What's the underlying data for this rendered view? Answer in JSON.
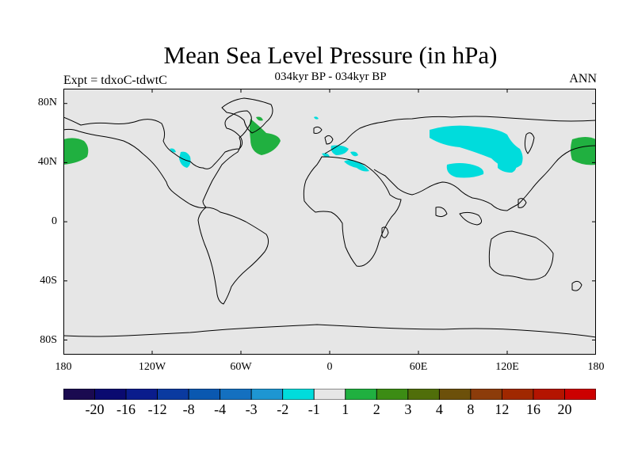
{
  "title": "Mean Sea Level Pressure (in hPa)",
  "left_label": "Expt = tdxoC-tdwtC",
  "center_label": "034kyr BP - 034kyr BP",
  "right_label": "ANN",
  "lat_ticks": [
    "80N",
    "40N",
    "0",
    "40S",
    "80S"
  ],
  "lon_ticks": [
    "180",
    "120W",
    "60W",
    "0",
    "60E",
    "120E",
    "180"
  ],
  "ocean_color": "#e6e6e6",
  "colorbar": {
    "colors": [
      "#1a0a50",
      "#0a0a70",
      "#0a1c8c",
      "#0a3aa0",
      "#0a58b0",
      "#1470c0",
      "#1e96d2",
      "#00dcdc",
      "#e6e6e6",
      "#20b040",
      "#3c8c14",
      "#506e0a",
      "#6c500a",
      "#8c3c0a",
      "#a02800",
      "#b41400",
      "#cc0000"
    ],
    "labels": [
      "-20",
      "-16",
      "-12",
      "-8",
      "-4",
      "-3",
      "-2",
      "-1",
      "1",
      "2",
      "3",
      "4",
      "8",
      "12",
      "16",
      "20"
    ]
  }
}
